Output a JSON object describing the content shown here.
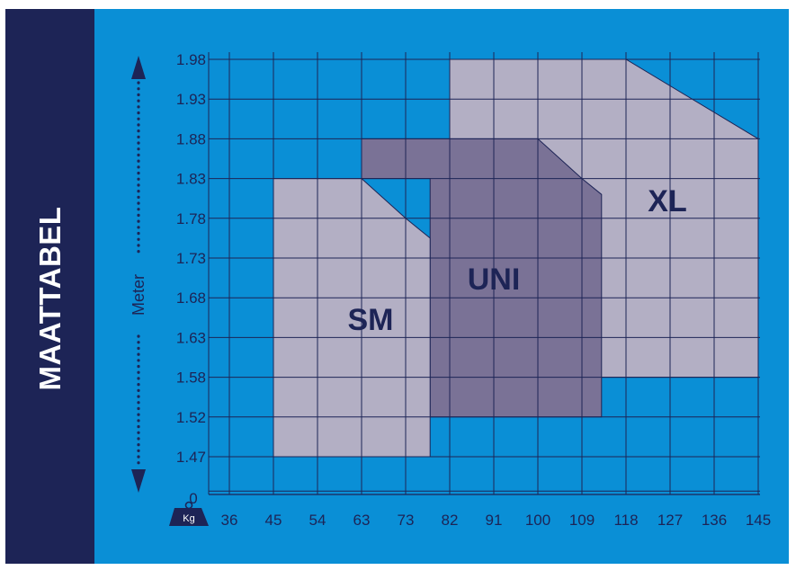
{
  "sidebar": {
    "title": "MAATTABEL"
  },
  "chart_data": {
    "type": "area",
    "title": "",
    "xlabel": "Kg",
    "ylabel": "Meter",
    "x_ticks": [
      "36",
      "45",
      "54",
      "63",
      "73",
      "82",
      "91",
      "100",
      "109",
      "118",
      "127",
      "136",
      "145"
    ],
    "y_ticks": [
      "1.98",
      "1.93",
      "1.88",
      "1.83",
      "1.78",
      "1.73",
      "1.68",
      "1.63",
      "1.58",
      "1.52",
      "1.47"
    ],
    "y_zero_label": "0",
    "grid": true,
    "regions": [
      {
        "name": "XL",
        "color": "#b3afc4",
        "polygon": [
          [
            82,
            1.98
          ],
          [
            118,
            1.98
          ],
          [
            145,
            1.88
          ],
          [
            145,
            1.58
          ],
          [
            82,
            1.58
          ]
        ]
      },
      {
        "name": "UNI",
        "color": "#7a7296",
        "polygon": [
          [
            63,
            1.88
          ],
          [
            100,
            1.88
          ],
          [
            109,
            1.83
          ],
          [
            113,
            1.81
          ],
          [
            113,
            1.52
          ],
          [
            78,
            1.52
          ],
          [
            78,
            1.83
          ],
          [
            63,
            1.83
          ]
        ]
      },
      {
        "name": "SM",
        "color": "#b3afc4",
        "polygon": [
          [
            45,
            1.83
          ],
          [
            63,
            1.83
          ],
          [
            73,
            1.78
          ],
          [
            78,
            1.755
          ],
          [
            78,
            1.47
          ],
          [
            45,
            1.47
          ]
        ]
      }
    ]
  },
  "colors": {
    "background": "#0a8fd6",
    "sidebar": "#1d2456",
    "grid": "#1d2456",
    "text": "#1d2456"
  }
}
